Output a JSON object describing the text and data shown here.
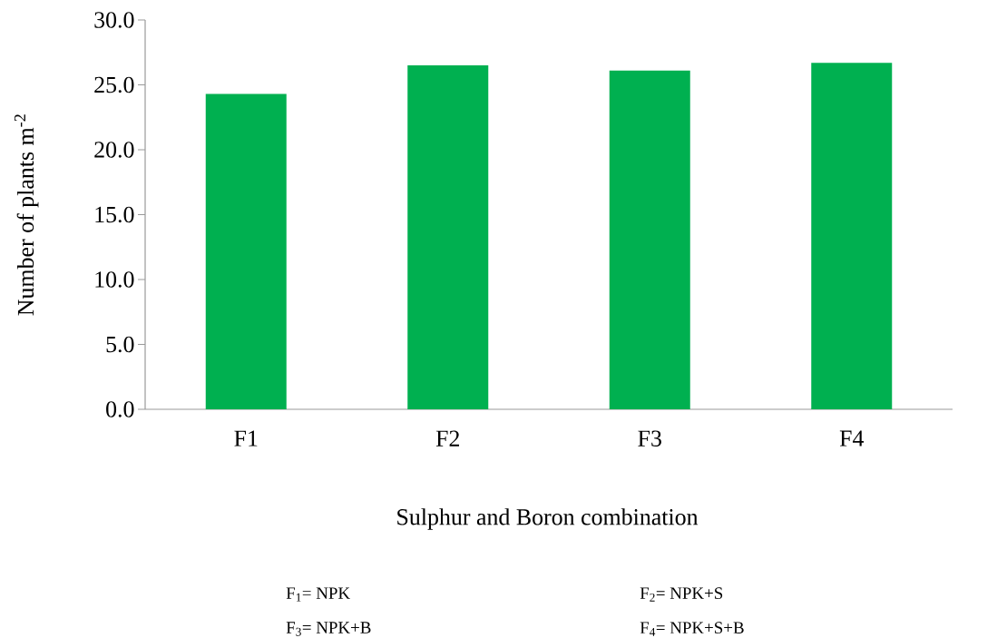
{
  "chart_data": {
    "type": "bar",
    "categories": [
      "F1",
      "F2",
      "F3",
      "F4"
    ],
    "values": [
      24.3,
      26.5,
      26.1,
      26.7
    ],
    "color": "#00b050",
    "xlabel": "Sulphur and Boron combination",
    "ylabel": "Number of plants m$^{-2}$",
    "ylim": [
      0,
      30
    ],
    "yticks": [
      {
        "value": 0,
        "label": "0.0"
      },
      {
        "value": 5,
        "label": "5.0"
      },
      {
        "value": 10,
        "label": "10.0"
      },
      {
        "value": 15,
        "label": "15.0"
      },
      {
        "value": 20,
        "label": "20.0"
      },
      {
        "value": 25,
        "label": "25.0"
      },
      {
        "value": 30,
        "label": "30.0"
      }
    ],
    "annotations": [
      "F$_{1}$= NPK",
      "F$_{2}$= NPK+S",
      "F$_{3}$= NPK+B",
      "F$_{4}$= NPK+S+B"
    ],
    "grid": false
  }
}
